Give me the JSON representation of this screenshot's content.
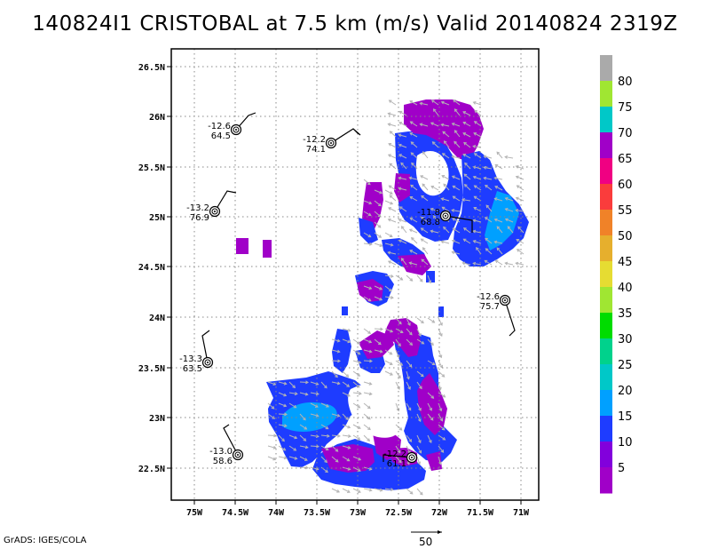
{
  "title": "140824I1 CRISTOBAL at 7.5 km (m/s) Valid 20140824 2319Z",
  "credit": "GrADS: IGES/COLA",
  "ref_vector_label": "50",
  "map": {
    "lon_ticks": [
      "75W",
      "74.5W",
      "74W",
      "73.5W",
      "73W",
      "72.5W",
      "72W",
      "71.5W",
      "71W"
    ],
    "lat_ticks": [
      "26.5N",
      "26N",
      "25.5N",
      "25N",
      "24.5N",
      "24N",
      "23.5N",
      "23N",
      "22.5N"
    ]
  },
  "colorbar": {
    "labels": [
      "5",
      "10",
      "15",
      "20",
      "25",
      "30",
      "35",
      "40",
      "45",
      "50",
      "55",
      "60",
      "65",
      "70",
      "75",
      "80"
    ],
    "colors": [
      "#a000c8",
      "#8200dc",
      "#1e3cff",
      "#00a0ff",
      "#00c8c8",
      "#00d28c",
      "#00dc00",
      "#a0e632",
      "#e6dc32",
      "#e6af2d",
      "#f08228",
      "#fa3c3c",
      "#f00082",
      "#a000c8",
      "#00c8c8",
      "#a0e632",
      "#aaaaaa"
    ]
  },
  "stations": [
    {
      "t": "-12.6",
      "v": "64.5"
    },
    {
      "t": "-12.2",
      "v": "74.1"
    },
    {
      "t": "-13.2",
      "v": "76.9"
    },
    {
      "t": "-11.8",
      "v": "68.8"
    },
    {
      "t": "-12.6",
      "v": "75.7"
    },
    {
      "t": "-13.3",
      "v": "63.5"
    },
    {
      "t": "-13.0",
      "v": "58.6"
    },
    {
      "t": "-12.2",
      "v": "61.1"
    }
  ]
}
